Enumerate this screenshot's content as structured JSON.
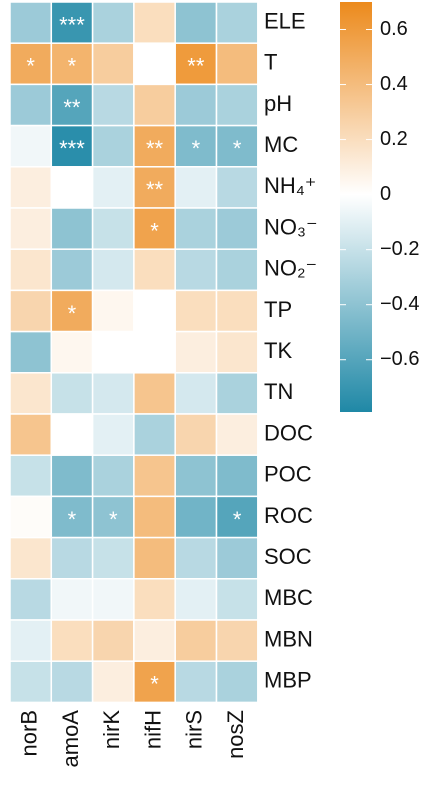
{
  "chart_data": {
    "type": "heatmap",
    "x": [
      "norB",
      "amoA",
      "nirK",
      "nifH",
      "nirS",
      "nosZ"
    ],
    "y": [
      "ELE",
      "T",
      "pH",
      "MC",
      "NH₄⁺",
      "NO₃⁻",
      "NO₂⁻",
      "TP",
      "TK",
      "TN",
      "DOC",
      "POC",
      "ROC",
      "SOC",
      "MBC",
      "MBN",
      "MBP"
    ],
    "values": [
      [
        -0.35,
        -0.7,
        -0.3,
        0.2,
        -0.4,
        -0.3
      ],
      [
        0.5,
        0.45,
        0.3,
        0.0,
        0.6,
        0.4
      ],
      [
        -0.35,
        -0.6,
        -0.25,
        0.3,
        -0.35,
        -0.3
      ],
      [
        -0.05,
        -0.75,
        -0.3,
        0.5,
        -0.45,
        -0.45
      ],
      [
        0.1,
        0.0,
        -0.1,
        0.5,
        -0.1,
        -0.25
      ],
      [
        0.1,
        -0.4,
        -0.2,
        0.55,
        -0.3,
        -0.35
      ],
      [
        0.15,
        -0.35,
        -0.15,
        0.2,
        -0.25,
        -0.3
      ],
      [
        0.25,
        0.5,
        0.05,
        0.0,
        0.2,
        0.2
      ],
      [
        -0.4,
        0.05,
        0.0,
        0.0,
        0.1,
        0.15
      ],
      [
        0.15,
        -0.2,
        -0.15,
        0.35,
        -0.15,
        -0.3
      ],
      [
        0.35,
        0.0,
        -0.1,
        -0.3,
        0.25,
        0.1
      ],
      [
        -0.2,
        -0.45,
        -0.3,
        0.35,
        -0.4,
        -0.45
      ],
      [
        0.02,
        -0.45,
        -0.4,
        0.4,
        -0.5,
        -0.6
      ],
      [
        0.15,
        -0.25,
        -0.2,
        0.4,
        -0.25,
        -0.35
      ],
      [
        -0.25,
        -0.05,
        -0.05,
        0.2,
        -0.1,
        -0.2
      ],
      [
        -0.1,
        0.2,
        0.25,
        0.1,
        0.3,
        0.25
      ],
      [
        -0.2,
        -0.25,
        0.1,
        0.55,
        -0.25,
        -0.3
      ]
    ],
    "significance": [
      [
        null,
        "***",
        null,
        null,
        null,
        null
      ],
      [
        "*",
        "*",
        null,
        null,
        "**",
        null
      ],
      [
        null,
        "**",
        null,
        null,
        null,
        null
      ],
      [
        null,
        "***",
        null,
        "**",
        "*",
        "*"
      ],
      [
        null,
        null,
        null,
        "**",
        null,
        null
      ],
      [
        null,
        null,
        null,
        "*",
        null,
        null
      ],
      [
        null,
        null,
        null,
        null,
        null,
        null
      ],
      [
        null,
        "*",
        null,
        null,
        null,
        null
      ],
      [
        null,
        null,
        null,
        null,
        null,
        null
      ],
      [
        null,
        null,
        null,
        null,
        null,
        null
      ],
      [
        null,
        null,
        null,
        null,
        null,
        null
      ],
      [
        null,
        null,
        null,
        null,
        null,
        null
      ],
      [
        null,
        "*",
        "*",
        null,
        null,
        "*"
      ],
      [
        null,
        null,
        null,
        null,
        null,
        null
      ],
      [
        null,
        null,
        null,
        null,
        null,
        null
      ],
      [
        null,
        null,
        null,
        null,
        null,
        null
      ],
      [
        null,
        null,
        null,
        "*",
        null,
        null
      ]
    ],
    "zlim": [
      -0.79,
      0.7
    ],
    "zticks": [
      0.6,
      0.4,
      0.2,
      0,
      {
        "value": -0.2,
        "label": "−0.2"
      },
      {
        "value": -0.4,
        "label": "−0.4"
      },
      {
        "value": -0.6,
        "label": "−0.6"
      }
    ],
    "low_color": "#1f88a6",
    "high_color": "#ec8a1c",
    "mid_color": "#ffffff"
  }
}
